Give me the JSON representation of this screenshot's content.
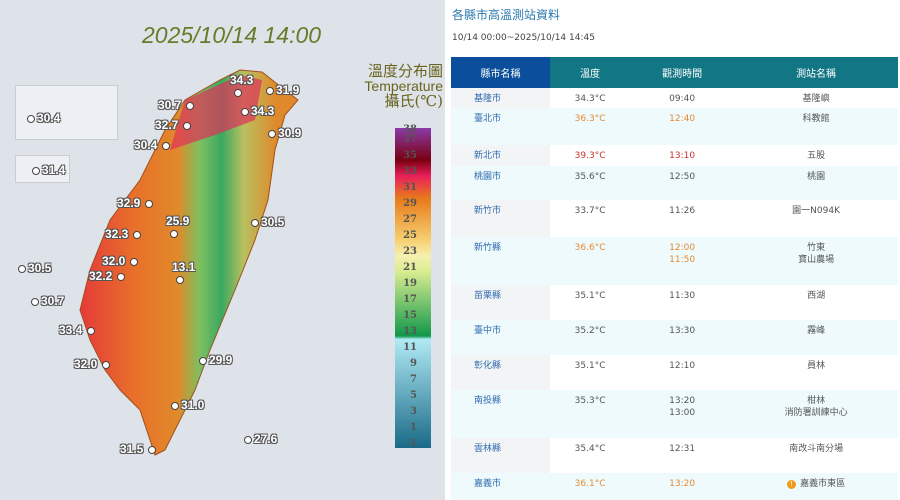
{
  "map": {
    "timestamp": "2025/10/14 14:00",
    "legend_title_zh": "溫度分布圖",
    "legend_title_en": "Temperature",
    "legend_unit": "攝氏(℃)",
    "legend_ticks": [
      "38",
      "37",
      "35",
      "33",
      "31",
      "29",
      "27",
      "25",
      "23",
      "21",
      "19",
      "17",
      "15",
      "13",
      "11",
      "9",
      "7",
      "5",
      "3",
      "1",
      "-1"
    ],
    "stations": [
      "30.4",
      "31.4",
      "30.7",
      "34.3",
      "31.9",
      "34.3",
      "32.7",
      "30.9",
      "30.4",
      "32.9",
      "25.9",
      "30.5",
      "32.3",
      "32.0",
      "13.1",
      "32.2",
      "30.5",
      "30.7",
      "33.4",
      "32.0",
      "29.9",
      "31.0",
      "31.5",
      "27.6"
    ]
  },
  "panel": {
    "title": "各縣市高溫測站資料",
    "range": "10/14 00:00~2025/10/14 14:45",
    "headers": [
      "縣市名稱",
      "溫度",
      "觀測時間",
      "測站名稱"
    ],
    "rows": [
      {
        "county": "基隆市",
        "temp": "34.3°C",
        "time": "09:40",
        "station": "基隆嶼",
        "level": ""
      },
      {
        "county": "臺北市",
        "temp": "36.3°C",
        "time": "12:40",
        "station": "科教館",
        "level": "orange"
      },
      {
        "county": "新北市",
        "temp": "39.3°C",
        "time": "13:10",
        "station": "五股",
        "level": "red"
      },
      {
        "county": "桃園市",
        "temp": "35.6°C",
        "time": "12:50",
        "station": "桃園",
        "level": ""
      },
      {
        "county": "新竹市",
        "temp": "33.7°C",
        "time": "11:26",
        "station": "園一N094K",
        "level": ""
      },
      {
        "county": "新竹縣",
        "temp": "36.6°C",
        "time": "12:00",
        "time2": "11:50",
        "station": "竹東",
        "station2": "寶山農場",
        "level": "orange"
      },
      {
        "county": "苗栗縣",
        "temp": "35.1°C",
        "time": "11:30",
        "station": "西湖",
        "level": ""
      },
      {
        "county": "臺中市",
        "temp": "35.2°C",
        "time": "13:30",
        "station": "霧峰",
        "level": ""
      },
      {
        "county": "彰化縣",
        "temp": "35.1°C",
        "time": "12:10",
        "station": "員林",
        "level": ""
      },
      {
        "county": "南投縣",
        "temp": "35.3°C",
        "time": "13:20",
        "time2": "13:00",
        "station": "柑林",
        "station2": "消防署訓練中心",
        "level": ""
      },
      {
        "county": "雲林縣",
        "temp": "35.4°C",
        "time": "12:31",
        "station": "南改斗南分場",
        "level": ""
      },
      {
        "county": "嘉義市",
        "temp": "36.1°C",
        "time": "13:20",
        "station": "嘉義市東區",
        "level": "orange",
        "icon": "warning-icon"
      }
    ]
  },
  "colors": {
    "header_county": "#0b4f9c",
    "header": "#127684",
    "orange": "#e58a34",
    "red": "#c8312e"
  }
}
